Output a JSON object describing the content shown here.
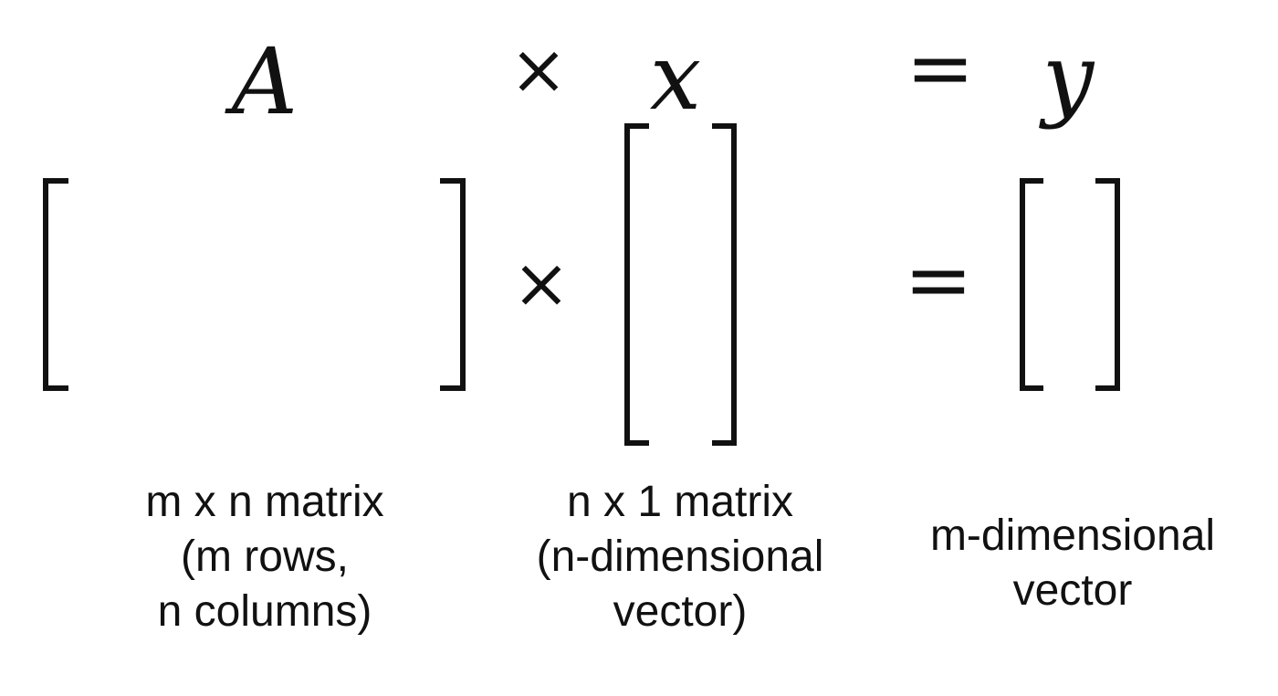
{
  "equation": {
    "matrix_symbol": "A",
    "times_symbol": "×",
    "vector_symbol": "x",
    "equals_symbol": "=",
    "result_symbol": "y"
  },
  "operators": {
    "times": "×",
    "equals": "="
  },
  "labels": {
    "matrix": [
      "m x n matrix",
      "(m rows,",
      "n columns)"
    ],
    "vector_x": [
      "n x 1 matrix",
      "(n-dimensional",
      "vector)"
    ],
    "vector_y": [
      "m-dimensional",
      "vector"
    ]
  }
}
